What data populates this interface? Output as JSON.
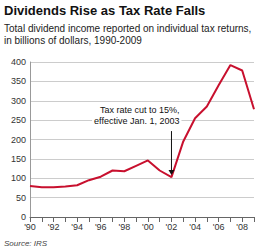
{
  "chart_data": {
    "type": "line",
    "title": "Dividends Rise as Tax Rate Falls",
    "subtitle": "Total dividend income reported on individual tax returns, in billions of dollars, 1990-2009",
    "source": "Source: IRS",
    "categories": [
      "'90",
      null,
      "'92",
      null,
      "'94",
      null,
      "'96",
      null,
      "'98",
      null,
      "'00",
      null,
      "'02",
      null,
      "'04",
      null,
      "'06",
      null,
      "'08",
      null
    ],
    "values": [
      80,
      77,
      77,
      79,
      82,
      95,
      104,
      120,
      118,
      132,
      146,
      120,
      103,
      195,
      255,
      285,
      340,
      392,
      378,
      278
    ],
    "color": "#c8102e",
    "ylim": [
      0,
      400
    ],
    "yticks": [
      0,
      50,
      100,
      150,
      200,
      250,
      300,
      350,
      400
    ],
    "grid": true,
    "annotation": {
      "text": "Tax rate cut to 15%,\neffective Jan. 1, 2003",
      "x": "'02"
    }
  }
}
